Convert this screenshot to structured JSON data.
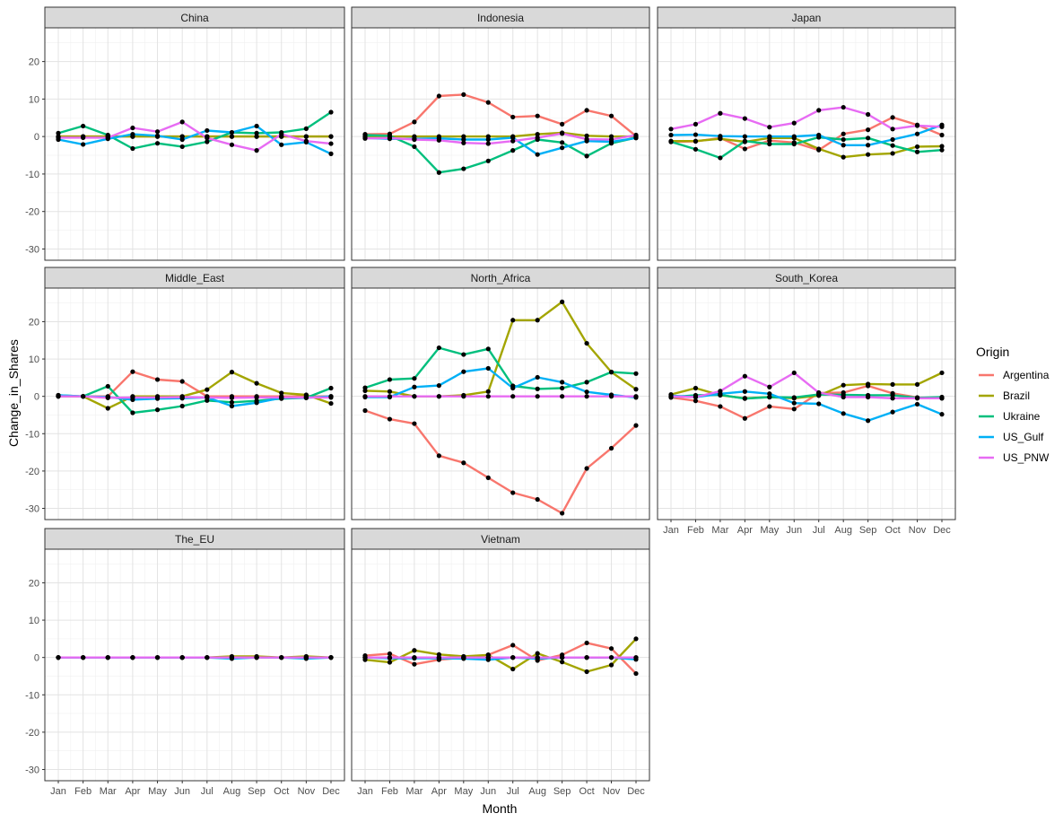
{
  "chart_data": {
    "type": "line",
    "xlabel": "Month",
    "ylabel": "Change_in_Shares",
    "ylim": [
      -33,
      29
    ],
    "yticks": [
      20,
      10,
      0,
      -10,
      -20,
      -30
    ],
    "months": [
      "Jan",
      "Feb",
      "Mar",
      "Apr",
      "May",
      "Jun",
      "Jul",
      "Aug",
      "Sep",
      "Oct",
      "Nov",
      "Dec"
    ],
    "legend": {
      "title": "Origin",
      "position": "right"
    },
    "series_colors": {
      "Argentina": "#F8766D",
      "Brazil": "#A3A500",
      "Ukraine": "#00BF7D",
      "US_Gulf": "#00B0F6",
      "US_PNW": "#E76BF3"
    },
    "series_order": [
      "Argentina",
      "Brazil",
      "Ukraine",
      "US_Gulf",
      "US_PNW"
    ],
    "panels": [
      {
        "title": "China",
        "series": {
          "Argentina": [
            0,
            0,
            0,
            0,
            0,
            0,
            0,
            0,
            0,
            0,
            0,
            0
          ],
          "Brazil": [
            0,
            0,
            0,
            0,
            0,
            0,
            0,
            0,
            0,
            0,
            0,
            0
          ],
          "Ukraine": [
            0.9,
            2.8,
            0.4,
            -3.2,
            -1.8,
            -2.7,
            -1.4,
            1.1,
            0.9,
            1.1,
            2.1,
            6.5
          ],
          "US_Gulf": [
            -0.8,
            -2.1,
            -0.6,
            0.6,
            0.2,
            -0.8,
            1.6,
            1.1,
            2.8,
            -2.2,
            -1.5,
            -4.6
          ],
          "US_PNW": [
            -0.3,
            -0.3,
            -0.3,
            2.3,
            1.3,
            3.9,
            -0.4,
            -2.2,
            -3.7,
            0.6,
            -1.2,
            -1.9
          ]
        }
      },
      {
        "title": "Indonesia",
        "series": {
          "Argentina": [
            0.6,
            0.7,
            3.9,
            10.8,
            11.2,
            9.1,
            5.2,
            5.5,
            3.3,
            7.0,
            5.5,
            0.1
          ],
          "Brazil": [
            0,
            0,
            0,
            0,
            0,
            0,
            0,
            0.6,
            1.0,
            0.2,
            0,
            0
          ],
          "Ukraine": [
            0.4,
            0.2,
            -2.7,
            -9.6,
            -8.6,
            -6.5,
            -3.7,
            -0.8,
            -1.6,
            -5.2,
            -1.8,
            -0.3
          ],
          "US_Gulf": [
            -0.4,
            -0.6,
            -0.6,
            -0.5,
            -0.8,
            -0.8,
            -0.3,
            -4.8,
            -3.0,
            -1.2,
            -1.4,
            -0.4
          ],
          "US_PNW": [
            -0.5,
            -0.4,
            -0.8,
            -1.0,
            -1.7,
            -1.9,
            -1.2,
            -0.3,
            0.8,
            -0.7,
            -0.8,
            0.4
          ]
        }
      },
      {
        "title": "Japan",
        "series": {
          "Argentina": [
            -1.4,
            -1.3,
            -0.4,
            -3.3,
            -1.1,
            -1.6,
            -3.6,
            0.7,
            1.8,
            5.1,
            3.1,
            0.4
          ],
          "Brazil": [
            -1.2,
            -1.2,
            -0.6,
            -1.4,
            -0.4,
            -0.4,
            -3.3,
            -5.5,
            -4.8,
            -4.5,
            -2.7,
            -2.6
          ],
          "Ukraine": [
            -1.4,
            -3.4,
            -5.7,
            -1.2,
            -2.0,
            -2.0,
            -0.2,
            -0.8,
            -0.4,
            -2.4,
            -4.1,
            -3.6
          ],
          "US_Gulf": [
            0.4,
            0.5,
            0.1,
            0.0,
            0.0,
            0.0,
            0.4,
            -2.3,
            -2.3,
            -0.8,
            0.7,
            3.1
          ],
          "US_PNW": [
            2.0,
            3.3,
            6.2,
            4.8,
            2.5,
            3.6,
            7.0,
            7.8,
            5.9,
            2.0,
            2.9,
            2.6
          ]
        }
      },
      {
        "title": "Middle_East",
        "series": {
          "Argentina": [
            0,
            0,
            0,
            6.6,
            4.5,
            4.0,
            0,
            0,
            0,
            0,
            0,
            0
          ],
          "Brazil": [
            0,
            0,
            -3.2,
            0,
            0,
            0,
            1.8,
            6.5,
            3.5,
            0.9,
            0.4,
            -1.9
          ],
          "Ukraine": [
            0.3,
            0,
            2.7,
            -4.4,
            -3.6,
            -2.6,
            -1.1,
            -1.6,
            -1.2,
            -0.6,
            -0.4,
            2.2
          ],
          "US_Gulf": [
            0.3,
            0,
            -0.2,
            -0.9,
            -0.6,
            -0.5,
            -0.3,
            -2.6,
            -1.7,
            -0.4,
            -0.4,
            0
          ],
          "US_PNW": [
            0,
            0,
            -0.4,
            -0.3,
            -0.3,
            -0.2,
            -0.3,
            -0.4,
            -0.3,
            -0.3,
            -0.3,
            -0.3
          ]
        }
      },
      {
        "title": "North_Africa",
        "series": {
          "Argentina": [
            -3.8,
            -6.1,
            -7.3,
            -15.9,
            -17.8,
            -21.8,
            -25.8,
            -27.6,
            -31.3,
            -19.3,
            -13.9,
            -7.8
          ],
          "Brazil": [
            1.5,
            1.3,
            0,
            0,
            0.3,
            1.3,
            20.4,
            20.4,
            25.3,
            14.2,
            6.5,
            1.9
          ],
          "Ukraine": [
            2.3,
            4.5,
            4.8,
            13.0,
            11.2,
            12.7,
            2.8,
            2.0,
            2.2,
            3.8,
            6.5,
            6.1
          ],
          "US_Gulf": [
            -0.2,
            -0.2,
            2.5,
            2.9,
            6.6,
            7.5,
            2.2,
            5.1,
            3.8,
            1.2,
            0.4,
            -0.3
          ],
          "US_PNW": [
            0,
            0,
            0,
            0,
            0,
            0,
            0,
            0,
            0,
            0,
            0,
            0
          ]
        }
      },
      {
        "title": "South_Korea",
        "series": {
          "Argentina": [
            -0.3,
            -1.2,
            -2.7,
            -5.9,
            -2.7,
            -3.4,
            0.9,
            1.0,
            2.8,
            0.8,
            -0.3,
            -0.5
          ],
          "Brazil": [
            0.5,
            2.2,
            0.3,
            -0.5,
            -0.2,
            -0.5,
            0.2,
            3.0,
            3.3,
            3.2,
            3.2,
            6.3
          ],
          "Ukraine": [
            -0.2,
            0.3,
            0.4,
            -0.6,
            -0.2,
            -0.3,
            0.5,
            0.4,
            0.3,
            0.3,
            -0.4,
            -0.2
          ],
          "US_Gulf": [
            0.2,
            -0.2,
            0.7,
            1.3,
            0.7,
            -1.8,
            -2.0,
            -4.6,
            -6.5,
            -4.2,
            -2.1,
            -4.8
          ],
          "US_PNW": [
            0,
            -0.2,
            1.4,
            5.4,
            2.5,
            6.3,
            1.0,
            -0.2,
            -0.2,
            -0.5,
            -0.5,
            -0.5
          ]
        }
      },
      {
        "title": "The_EU",
        "series": {
          "Argentina": [
            0,
            0,
            0,
            0,
            0,
            0,
            0,
            0,
            0,
            0,
            0,
            0
          ],
          "Brazil": [
            0,
            0,
            0,
            0,
            0,
            0,
            0,
            0.3,
            0.3,
            0,
            0.3,
            0
          ],
          "Ukraine": [
            0,
            0,
            0,
            0,
            0,
            0,
            0,
            0,
            0,
            0,
            0,
            0
          ],
          "US_Gulf": [
            0,
            0,
            0,
            0,
            0,
            0,
            0,
            -0.3,
            0,
            0,
            -0.3,
            0
          ],
          "US_PNW": [
            0,
            0,
            0,
            0,
            0,
            0,
            0,
            0,
            0,
            0,
            0,
            0
          ]
        }
      },
      {
        "title": "Vietnam",
        "series": {
          "Argentina": [
            0.5,
            1.0,
            -1.8,
            -0.6,
            0,
            0.7,
            3.3,
            -0.8,
            0.7,
            3.9,
            2.4,
            -4.3
          ],
          "Brazil": [
            -0.6,
            -1.3,
            1.9,
            0.8,
            0.3,
            0.7,
            -3.1,
            1.1,
            -1.2,
            -3.8,
            -2.0,
            5.0
          ],
          "Ukraine": [
            0,
            0,
            0,
            0,
            0,
            0,
            0,
            0,
            0,
            0,
            0,
            0
          ],
          "US_Gulf": [
            0,
            -0.2,
            -0.2,
            -0.2,
            -0.3,
            -0.6,
            0,
            -0.3,
            0,
            0,
            0,
            -0.5
          ],
          "US_PNW": [
            0,
            0,
            0,
            0,
            0,
            0,
            0,
            0,
            0,
            0,
            0,
            0
          ]
        }
      }
    ]
  }
}
